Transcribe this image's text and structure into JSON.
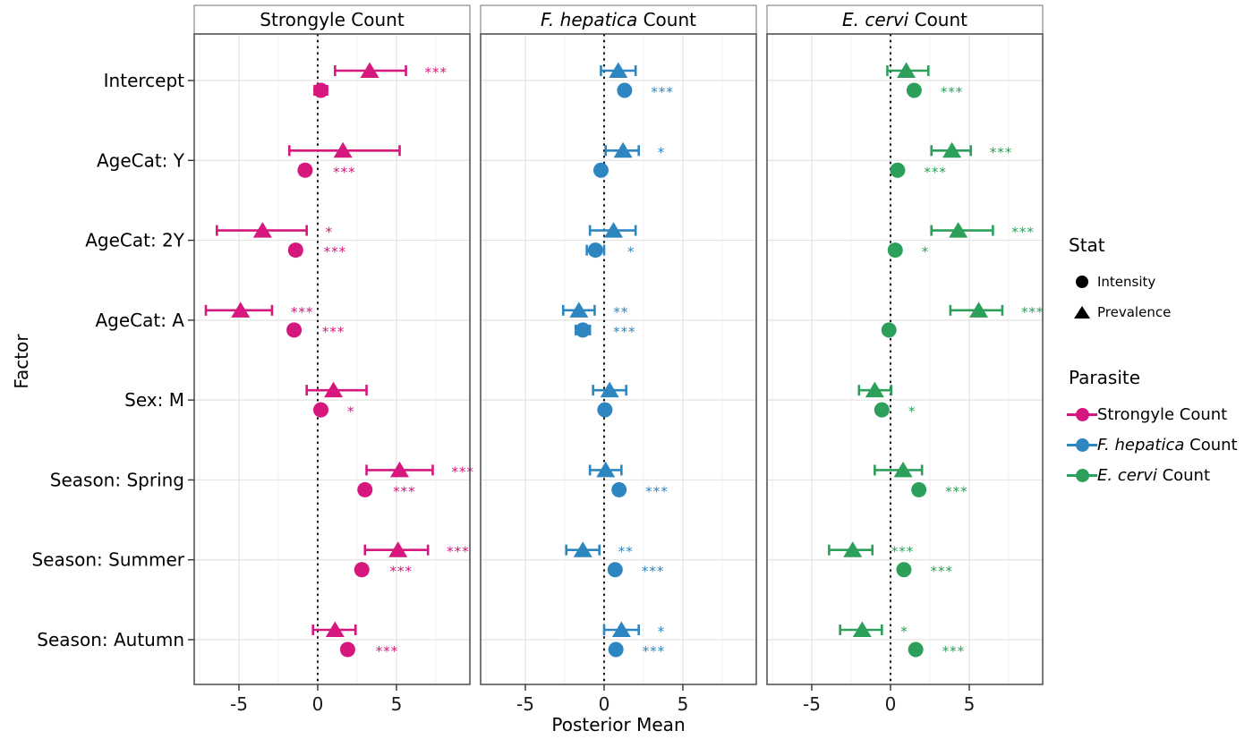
{
  "figure": {
    "xlabel": "Posterior Mean",
    "ylabel": "Factor",
    "background": "#FFFFFF"
  },
  "legend": {
    "stat": {
      "title": "Stat",
      "items": [
        {
          "label": "Intensity",
          "shape": "circle"
        },
        {
          "label": "Prevalence",
          "shape": "triangle"
        }
      ]
    },
    "parasite": {
      "title": "Parasite",
      "items": [
        {
          "segments": [
            {
              "t": "Strongyle Count",
              "i": false
            }
          ],
          "color": "#D5177E"
        },
        {
          "segments": [
            {
              "t": "F. hepatica",
              "i": true
            },
            {
              "t": " Count",
              "i": false
            }
          ],
          "color": "#2E86C1"
        },
        {
          "segments": [
            {
              "t": "E. cervi",
              "i": true
            },
            {
              "t": " Count",
              "i": false
            }
          ],
          "color": "#2CA05A"
        }
      ]
    }
  },
  "chart_data": {
    "type": "scatter",
    "subtype": "forest-plot-faceted",
    "xlabel": "Posterior Mean",
    "ylabel": "Factor",
    "x_axis": {
      "ticks": [
        -5,
        0,
        5
      ],
      "minor_ticks": [
        -7.5,
        -2.5,
        2.5,
        7.5
      ],
      "range": [
        -7.84,
        9.66
      ],
      "reference_line": 0
    },
    "categories": [
      "Intercept",
      "AgeCat: Y",
      "AgeCat: 2Y",
      "AgeCat: A",
      "Sex: M",
      "Season: Spring",
      "Season: Summer",
      "Season: Autumn"
    ],
    "stat_shapes": {
      "Intensity": "circle",
      "Prevalence": "triangle"
    },
    "facets": [
      {
        "title_segments": [
          {
            "t": "Strongyle Count",
            "i": false
          }
        ],
        "color": "#D5177E",
        "rows": [
          {
            "factor": "Intercept",
            "prevalence": {
              "mean": 3.3,
              "lo": 1.1,
              "hi": 5.6,
              "sig": "***"
            },
            "intensity": {
              "mean": 0.2,
              "lo": -0.2,
              "hi": 0.6,
              "sig": ""
            }
          },
          {
            "factor": "AgeCat: Y",
            "prevalence": {
              "mean": 1.6,
              "lo": -1.8,
              "hi": 5.2,
              "sig": ""
            },
            "intensity": {
              "mean": -0.8,
              "lo": -1.1,
              "hi": -0.5,
              "sig": "***"
            }
          },
          {
            "factor": "AgeCat: 2Y",
            "prevalence": {
              "mean": -3.5,
              "lo": -6.4,
              "hi": -0.7,
              "sig": "*"
            },
            "intensity": {
              "mean": -1.4,
              "lo": -1.7,
              "hi": -1.1,
              "sig": "***"
            }
          },
          {
            "factor": "AgeCat: A",
            "prevalence": {
              "mean": -4.9,
              "lo": -7.1,
              "hi": -2.9,
              "sig": "***"
            },
            "intensity": {
              "mean": -1.5,
              "lo": -1.8,
              "hi": -1.2,
              "sig": "***"
            }
          },
          {
            "factor": "Sex: M",
            "prevalence": {
              "mean": 1.0,
              "lo": -0.7,
              "hi": 3.1,
              "sig": ""
            },
            "intensity": {
              "mean": 0.2,
              "lo": 0.0,
              "hi": 0.4,
              "sig": "*"
            }
          },
          {
            "factor": "Season: Spring",
            "prevalence": {
              "mean": 5.2,
              "lo": 3.1,
              "hi": 7.3,
              "sig": "***"
            },
            "intensity": {
              "mean": 3.0,
              "lo": 2.7,
              "hi": 3.3,
              "sig": "***"
            }
          },
          {
            "factor": "Season: Summer",
            "prevalence": {
              "mean": 5.1,
              "lo": 3.0,
              "hi": 7.0,
              "sig": "***"
            },
            "intensity": {
              "mean": 2.8,
              "lo": 2.5,
              "hi": 3.1,
              "sig": "***"
            }
          },
          {
            "factor": "Season: Autumn",
            "prevalence": {
              "mean": 1.1,
              "lo": -0.3,
              "hi": 2.4,
              "sig": ""
            },
            "intensity": {
              "mean": 1.9,
              "lo": 1.6,
              "hi": 2.2,
              "sig": "***"
            }
          }
        ]
      },
      {
        "title_segments": [
          {
            "t": "F. hepatica",
            "i": true
          },
          {
            "t": " Count",
            "i": false
          }
        ],
        "color": "#2E86C1",
        "rows": [
          {
            "factor": "Intercept",
            "prevalence": {
              "mean": 0.9,
              "lo": -0.2,
              "hi": 2.0,
              "sig": ""
            },
            "intensity": {
              "mean": 1.3,
              "lo": 1.1,
              "hi": 1.5,
              "sig": "***"
            }
          },
          {
            "factor": "AgeCat: Y",
            "prevalence": {
              "mean": 1.2,
              "lo": 0.1,
              "hi": 2.2,
              "sig": "*"
            },
            "intensity": {
              "mean": -0.2,
              "lo": -0.4,
              "hi": 0.0,
              "sig": ""
            }
          },
          {
            "factor": "AgeCat: 2Y",
            "prevalence": {
              "mean": 0.6,
              "lo": -0.9,
              "hi": 2.0,
              "sig": ""
            },
            "intensity": {
              "mean": -0.55,
              "lo": -1.1,
              "hi": 0.0,
              "sig": "*"
            }
          },
          {
            "factor": "AgeCat: A",
            "prevalence": {
              "mean": -1.6,
              "lo": -2.6,
              "hi": -0.6,
              "sig": "**"
            },
            "intensity": {
              "mean": -1.35,
              "lo": -1.8,
              "hi": -0.9,
              "sig": "***"
            }
          },
          {
            "factor": "Sex: M",
            "prevalence": {
              "mean": 0.35,
              "lo": -0.7,
              "hi": 1.4,
              "sig": ""
            },
            "intensity": {
              "mean": 0.05,
              "lo": -0.15,
              "hi": 0.25,
              "sig": ""
            }
          },
          {
            "factor": "Season: Spring",
            "prevalence": {
              "mean": 0.1,
              "lo": -0.9,
              "hi": 1.1,
              "sig": ""
            },
            "intensity": {
              "mean": 0.95,
              "lo": 0.75,
              "hi": 1.15,
              "sig": "***"
            }
          },
          {
            "factor": "Season: Summer",
            "prevalence": {
              "mean": -1.35,
              "lo": -2.4,
              "hi": -0.3,
              "sig": "**"
            },
            "intensity": {
              "mean": 0.7,
              "lo": 0.5,
              "hi": 0.9,
              "sig": "***"
            }
          },
          {
            "factor": "Season: Autumn",
            "prevalence": {
              "mean": 1.1,
              "lo": 0.0,
              "hi": 2.2,
              "sig": "*"
            },
            "intensity": {
              "mean": 0.75,
              "lo": 0.55,
              "hi": 0.95,
              "sig": "***"
            }
          }
        ]
      },
      {
        "title_segments": [
          {
            "t": "E. cervi",
            "i": true
          },
          {
            "t": " Count",
            "i": false
          }
        ],
        "color": "#2CA05A",
        "rows": [
          {
            "factor": "Intercept",
            "prevalence": {
              "mean": 1.0,
              "lo": -0.2,
              "hi": 2.4,
              "sig": ""
            },
            "intensity": {
              "mean": 1.5,
              "lo": 1.3,
              "hi": 1.7,
              "sig": "***"
            }
          },
          {
            "factor": "AgeCat: Y",
            "prevalence": {
              "mean": 3.9,
              "lo": 2.6,
              "hi": 5.1,
              "sig": "***"
            },
            "intensity": {
              "mean": 0.45,
              "lo": 0.25,
              "hi": 0.65,
              "sig": "***"
            }
          },
          {
            "factor": "AgeCat: 2Y",
            "prevalence": {
              "mean": 4.3,
              "lo": 2.6,
              "hi": 6.5,
              "sig": "***"
            },
            "intensity": {
              "mean": 0.3,
              "lo": 0.1,
              "hi": 0.5,
              "sig": "*"
            }
          },
          {
            "factor": "AgeCat: A",
            "prevalence": {
              "mean": 5.6,
              "lo": 3.8,
              "hi": 7.1,
              "sig": "***"
            },
            "intensity": {
              "mean": -0.1,
              "lo": -0.3,
              "hi": 0.1,
              "sig": ""
            }
          },
          {
            "factor": "Sex: M",
            "prevalence": {
              "mean": -1.0,
              "lo": -2.0,
              "hi": 0.05,
              "sig": ""
            },
            "intensity": {
              "mean": -0.55,
              "lo": -0.75,
              "hi": -0.35,
              "sig": "*"
            }
          },
          {
            "factor": "Season: Spring",
            "prevalence": {
              "mean": 0.8,
              "lo": -1.0,
              "hi": 2.0,
              "sig": ""
            },
            "intensity": {
              "mean": 1.8,
              "lo": 1.6,
              "hi": 2.0,
              "sig": "***"
            }
          },
          {
            "factor": "Season: Summer",
            "prevalence": {
              "mean": -2.4,
              "lo": -3.9,
              "hi": -1.15,
              "sig": "***"
            },
            "intensity": {
              "mean": 0.85,
              "lo": 0.65,
              "hi": 1.05,
              "sig": "***"
            }
          },
          {
            "factor": "Season: Autumn",
            "prevalence": {
              "mean": -1.8,
              "lo": -3.2,
              "hi": -0.55,
              "sig": "*"
            },
            "intensity": {
              "mean": 1.6,
              "lo": 1.4,
              "hi": 1.8,
              "sig": "***"
            }
          }
        ]
      }
    ]
  }
}
